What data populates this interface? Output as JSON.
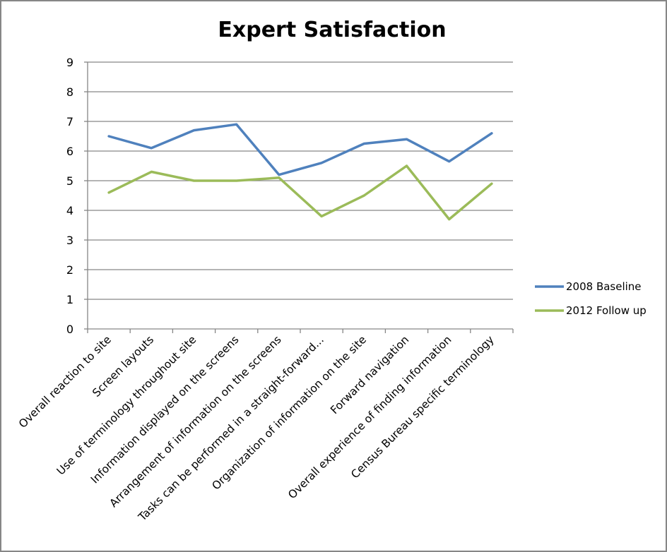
{
  "chart_data": {
    "type": "line",
    "title": "Expert Satisfaction",
    "xlabel": "",
    "ylabel": "",
    "ylim": [
      0,
      9
    ],
    "yticks": [
      "0",
      "1",
      "2",
      "3",
      "4",
      "5",
      "6",
      "7",
      "8",
      "9"
    ],
    "grid": true,
    "legend_position": "right",
    "categories": [
      "Overall reaction to site",
      "Screen layouts",
      "Use of terminology throughout site",
      "Information displayed on the screens",
      "Arrangement of information on the screens",
      "Tasks can be performed in a straight-forward...",
      "Organization of information on the site",
      "Forward navigation",
      "Overall experience of finding information",
      "Census Bureau specific terminology"
    ],
    "series": [
      {
        "name": "2008 Baseline",
        "color": "#4F81BD",
        "values": [
          6.5,
          6.1,
          6.7,
          6.9,
          5.2,
          5.6,
          6.25,
          6.4,
          5.65,
          6.6
        ]
      },
      {
        "name": "2012 Follow up",
        "color": "#9BBB59",
        "values": [
          4.6,
          5.3,
          5.0,
          5.0,
          5.1,
          3.8,
          4.5,
          5.5,
          3.7,
          4.9
        ]
      }
    ]
  }
}
